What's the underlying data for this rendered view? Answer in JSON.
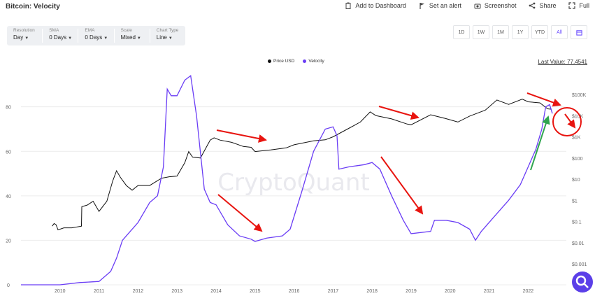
{
  "header": {
    "title": "Bitcoin: Velocity",
    "add_to_dashboard": "Add to Dashboard",
    "set_alert": "Set an alert",
    "screenshot": "Screenshot",
    "share": "Share",
    "full": "Full"
  },
  "settings": [
    {
      "label": "Resolution",
      "value": "Day"
    },
    {
      "label": "SMA",
      "value": "0 Days"
    },
    {
      "label": "EMA",
      "value": "0 Days"
    },
    {
      "label": "Scale",
      "value": "Mixed"
    },
    {
      "label": "Chart Type",
      "value": "Line"
    }
  ],
  "ranges": [
    "1D",
    "1W",
    "1M",
    "1Y",
    "YTD",
    "All"
  ],
  "active_range": "All",
  "last_value_text": "Last Value: 77.4541",
  "watermark": "CryptoQuant",
  "colors": {
    "price": "#111111",
    "velocity": "#6a3df5",
    "arrow_red": "#e8140f",
    "arrow_green": "#2fa44f",
    "accent": "#5b3fe8"
  },
  "chart_data": {
    "type": "line",
    "x_ticks": [
      "2010",
      "2011",
      "2012",
      "2013",
      "2014",
      "2015",
      "2016",
      "2017",
      "2018",
      "2019",
      "2020",
      "2021",
      "2022"
    ],
    "left_axis": {
      "ticks": [
        0,
        20,
        40,
        60,
        80
      ],
      "ylim": [
        0,
        95
      ]
    },
    "right_axis": {
      "ticks": [
        "$0.001",
        "$0.01",
        "$0.1",
        "$1",
        "$10",
        "$100",
        "$1K",
        "$10K",
        "$100K"
      ],
      "scale": "log"
    },
    "series": [
      {
        "name": "Price USD",
        "axis": "right",
        "points": [
          [
            2009.8,
            0.06
          ],
          [
            2009.85,
            0.08
          ],
          [
            2009.9,
            0.07
          ],
          [
            2009.95,
            0.04
          ],
          [
            2010.1,
            0.05
          ],
          [
            2010.3,
            0.05
          ],
          [
            2010.55,
            0.06
          ],
          [
            2010.56,
            0.5
          ],
          [
            2010.7,
            0.6
          ],
          [
            2010.85,
            0.9
          ],
          [
            2011.0,
            0.3
          ],
          [
            2011.2,
            0.9
          ],
          [
            2011.35,
            8
          ],
          [
            2011.45,
            25
          ],
          [
            2011.55,
            12
          ],
          [
            2011.7,
            5
          ],
          [
            2011.85,
            3
          ],
          [
            2012.0,
            5
          ],
          [
            2012.3,
            5
          ],
          [
            2012.6,
            11
          ],
          [
            2012.8,
            13
          ],
          [
            2013.0,
            14
          ],
          [
            2013.2,
            60
          ],
          [
            2013.3,
            200
          ],
          [
            2013.4,
            110
          ],
          [
            2013.6,
            100
          ],
          [
            2013.85,
            700
          ],
          [
            2013.95,
            900
          ],
          [
            2014.1,
            700
          ],
          [
            2014.4,
            550
          ],
          [
            2014.7,
            350
          ],
          [
            2014.9,
            320
          ],
          [
            2015.0,
            200
          ],
          [
            2015.4,
            240
          ],
          [
            2015.8,
            300
          ],
          [
            2016.0,
            420
          ],
          [
            2016.5,
            650
          ],
          [
            2016.8,
            720
          ],
          [
            2017.0,
            1000
          ],
          [
            2017.4,
            2500
          ],
          [
            2017.7,
            5000
          ],
          [
            2017.95,
            15000
          ],
          [
            2018.1,
            10000
          ],
          [
            2018.5,
            7000
          ],
          [
            2018.9,
            4000
          ],
          [
            2019.0,
            3700
          ],
          [
            2019.5,
            11000
          ],
          [
            2019.9,
            7200
          ],
          [
            2020.2,
            5000
          ],
          [
            2020.5,
            9500
          ],
          [
            2020.9,
            18000
          ],
          [
            2021.2,
            55000
          ],
          [
            2021.5,
            34000
          ],
          [
            2021.85,
            60000
          ],
          [
            2022.0,
            45000
          ],
          [
            2022.3,
            40000
          ],
          [
            2022.5,
            21000
          ],
          [
            2022.6,
            20000
          ]
        ]
      },
      {
        "name": "Velocity",
        "axis": "left",
        "points": [
          [
            2009.0,
            0
          ],
          [
            2010.0,
            0
          ],
          [
            2010.5,
            1
          ],
          [
            2011.0,
            1.5
          ],
          [
            2011.3,
            6
          ],
          [
            2011.45,
            12
          ],
          [
            2011.6,
            20
          ],
          [
            2011.75,
            23
          ],
          [
            2012.0,
            28
          ],
          [
            2012.3,
            37
          ],
          [
            2012.5,
            40
          ],
          [
            2012.65,
            53
          ],
          [
            2012.75,
            88
          ],
          [
            2012.85,
            85
          ],
          [
            2013.0,
            85
          ],
          [
            2013.2,
            92
          ],
          [
            2013.35,
            94
          ],
          [
            2013.5,
            76
          ],
          [
            2013.7,
            43
          ],
          [
            2013.85,
            37
          ],
          [
            2014.0,
            36
          ],
          [
            2014.3,
            27
          ],
          [
            2014.6,
            22
          ],
          [
            2014.9,
            20.5
          ],
          [
            2015.0,
            19.5
          ],
          [
            2015.3,
            21
          ],
          [
            2015.7,
            22
          ],
          [
            2015.9,
            25
          ],
          [
            2016.2,
            42
          ],
          [
            2016.5,
            60
          ],
          [
            2016.8,
            70
          ],
          [
            2017.0,
            71
          ],
          [
            2017.1,
            67
          ],
          [
            2017.15,
            52
          ],
          [
            2017.4,
            53
          ],
          [
            2017.8,
            54
          ],
          [
            2018.0,
            55
          ],
          [
            2018.2,
            52
          ],
          [
            2018.5,
            40
          ],
          [
            2018.8,
            29
          ],
          [
            2019.0,
            23
          ],
          [
            2019.5,
            24
          ],
          [
            2019.6,
            29
          ],
          [
            2019.9,
            29
          ],
          [
            2020.2,
            28
          ],
          [
            2020.5,
            25
          ],
          [
            2020.65,
            20
          ],
          [
            2020.8,
            24
          ],
          [
            2021.1,
            30
          ],
          [
            2021.5,
            38
          ],
          [
            2021.8,
            45
          ],
          [
            2022.0,
            53
          ],
          [
            2022.2,
            61
          ],
          [
            2022.35,
            70
          ],
          [
            2022.45,
            80
          ],
          [
            2022.55,
            81
          ],
          [
            2022.62,
            77
          ]
        ]
      }
    ]
  }
}
